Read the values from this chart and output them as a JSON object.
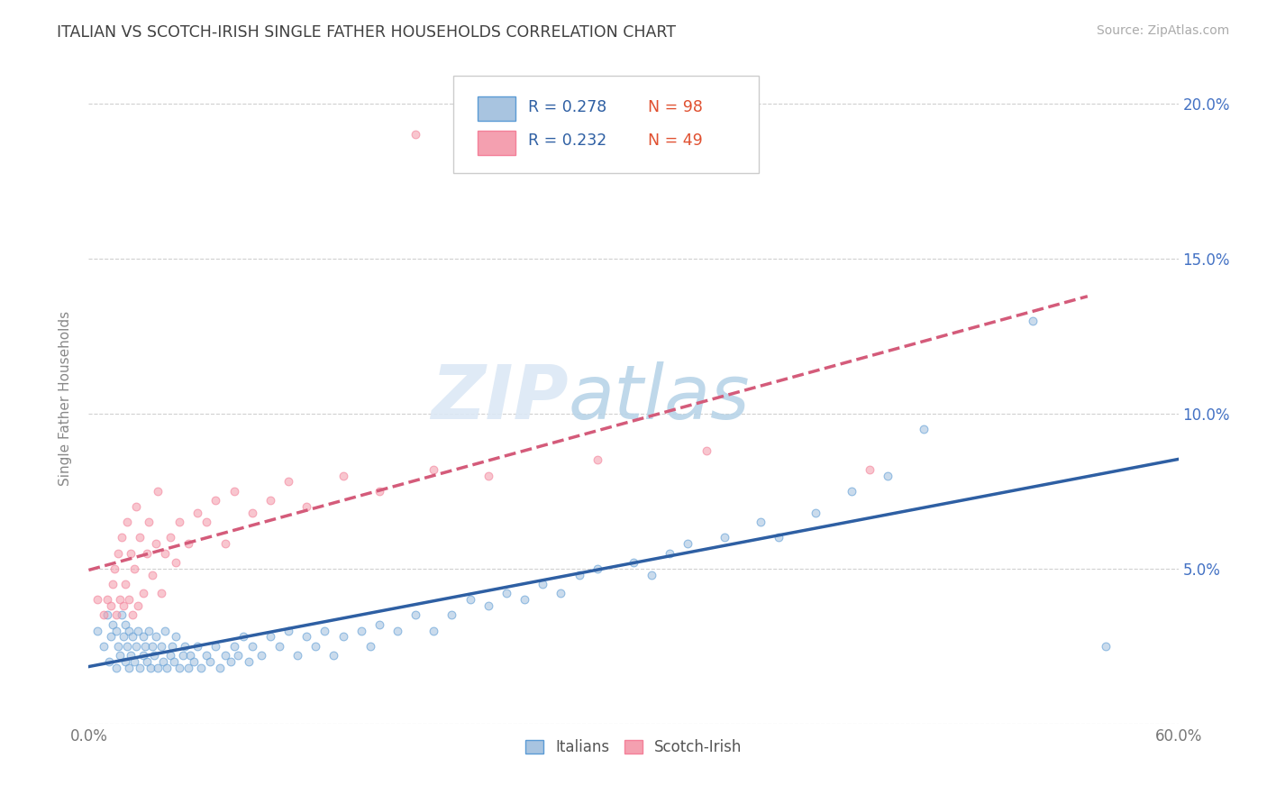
{
  "title": "ITALIAN VS SCOTCH-IRISH SINGLE FATHER HOUSEHOLDS CORRELATION CHART",
  "source": "Source: ZipAtlas.com",
  "ylabel": "Single Father Households",
  "xlim": [
    0.0,
    0.6
  ],
  "ylim": [
    0.0,
    0.21
  ],
  "xticks": [
    0.0,
    0.1,
    0.2,
    0.3,
    0.4,
    0.5,
    0.6
  ],
  "xticklabels": [
    "0.0%",
    "",
    "",
    "",
    "",
    "",
    "60.0%"
  ],
  "yticks": [
    0.0,
    0.05,
    0.1,
    0.15,
    0.2
  ],
  "yticklabels_right": [
    "",
    "5.0%",
    "10.0%",
    "15.0%",
    "20.0%"
  ],
  "italian_color": "#a8c4e0",
  "scotch_color": "#f4a0b0",
  "italian_border_color": "#5b9bd5",
  "scotch_border_color": "#f48099",
  "italian_line_color": "#2e5fa3",
  "scotch_line_color": "#d45b7a",
  "legend_R_italian": "R = 0.278",
  "legend_N_italian": "N = 98",
  "legend_R_scotch": "R = 0.232",
  "legend_N_scotch": "N = 49",
  "watermark_zip": "ZIP",
  "watermark_atlas": "atlas",
  "background_color": "#ffffff",
  "grid_color": "#d0d0d0",
  "title_color": "#404040",
  "axis_color": "#4472c4",
  "scatter_alpha": 0.6,
  "scatter_size": 40,
  "italian_scatter_x": [
    0.005,
    0.008,
    0.01,
    0.011,
    0.012,
    0.013,
    0.015,
    0.015,
    0.016,
    0.017,
    0.018,
    0.019,
    0.02,
    0.02,
    0.021,
    0.022,
    0.022,
    0.023,
    0.024,
    0.025,
    0.026,
    0.027,
    0.028,
    0.03,
    0.03,
    0.031,
    0.032,
    0.033,
    0.034,
    0.035,
    0.036,
    0.037,
    0.038,
    0.04,
    0.041,
    0.042,
    0.043,
    0.045,
    0.046,
    0.047,
    0.048,
    0.05,
    0.052,
    0.053,
    0.055,
    0.056,
    0.058,
    0.06,
    0.062,
    0.065,
    0.067,
    0.07,
    0.072,
    0.075,
    0.078,
    0.08,
    0.082,
    0.085,
    0.088,
    0.09,
    0.095,
    0.1,
    0.105,
    0.11,
    0.115,
    0.12,
    0.125,
    0.13,
    0.135,
    0.14,
    0.15,
    0.155,
    0.16,
    0.17,
    0.18,
    0.19,
    0.2,
    0.21,
    0.22,
    0.23,
    0.24,
    0.25,
    0.26,
    0.27,
    0.28,
    0.3,
    0.31,
    0.32,
    0.33,
    0.35,
    0.37,
    0.38,
    0.4,
    0.42,
    0.44,
    0.46,
    0.52,
    0.56
  ],
  "italian_scatter_y": [
    0.03,
    0.025,
    0.035,
    0.02,
    0.028,
    0.032,
    0.018,
    0.03,
    0.025,
    0.022,
    0.035,
    0.028,
    0.02,
    0.032,
    0.025,
    0.018,
    0.03,
    0.022,
    0.028,
    0.02,
    0.025,
    0.03,
    0.018,
    0.022,
    0.028,
    0.025,
    0.02,
    0.03,
    0.018,
    0.025,
    0.022,
    0.028,
    0.018,
    0.025,
    0.02,
    0.03,
    0.018,
    0.022,
    0.025,
    0.02,
    0.028,
    0.018,
    0.022,
    0.025,
    0.018,
    0.022,
    0.02,
    0.025,
    0.018,
    0.022,
    0.02,
    0.025,
    0.018,
    0.022,
    0.02,
    0.025,
    0.022,
    0.028,
    0.02,
    0.025,
    0.022,
    0.028,
    0.025,
    0.03,
    0.022,
    0.028,
    0.025,
    0.03,
    0.022,
    0.028,
    0.03,
    0.025,
    0.032,
    0.03,
    0.035,
    0.03,
    0.035,
    0.04,
    0.038,
    0.042,
    0.04,
    0.045,
    0.042,
    0.048,
    0.05,
    0.052,
    0.048,
    0.055,
    0.058,
    0.06,
    0.065,
    0.06,
    0.068,
    0.075,
    0.08,
    0.095,
    0.13,
    0.025
  ],
  "scotch_scatter_x": [
    0.005,
    0.008,
    0.01,
    0.012,
    0.013,
    0.014,
    0.015,
    0.016,
    0.017,
    0.018,
    0.019,
    0.02,
    0.021,
    0.022,
    0.023,
    0.024,
    0.025,
    0.026,
    0.027,
    0.028,
    0.03,
    0.032,
    0.033,
    0.035,
    0.037,
    0.038,
    0.04,
    0.042,
    0.045,
    0.048,
    0.05,
    0.055,
    0.06,
    0.065,
    0.07,
    0.075,
    0.08,
    0.09,
    0.1,
    0.11,
    0.12,
    0.14,
    0.16,
    0.19,
    0.22,
    0.28,
    0.34,
    0.43,
    0.18
  ],
  "scotch_scatter_y": [
    0.04,
    0.035,
    0.04,
    0.038,
    0.045,
    0.05,
    0.035,
    0.055,
    0.04,
    0.06,
    0.038,
    0.045,
    0.065,
    0.04,
    0.055,
    0.035,
    0.05,
    0.07,
    0.038,
    0.06,
    0.042,
    0.055,
    0.065,
    0.048,
    0.058,
    0.075,
    0.042,
    0.055,
    0.06,
    0.052,
    0.065,
    0.058,
    0.068,
    0.065,
    0.072,
    0.058,
    0.075,
    0.068,
    0.072,
    0.078,
    0.07,
    0.08,
    0.075,
    0.082,
    0.08,
    0.085,
    0.088,
    0.082,
    0.19
  ]
}
